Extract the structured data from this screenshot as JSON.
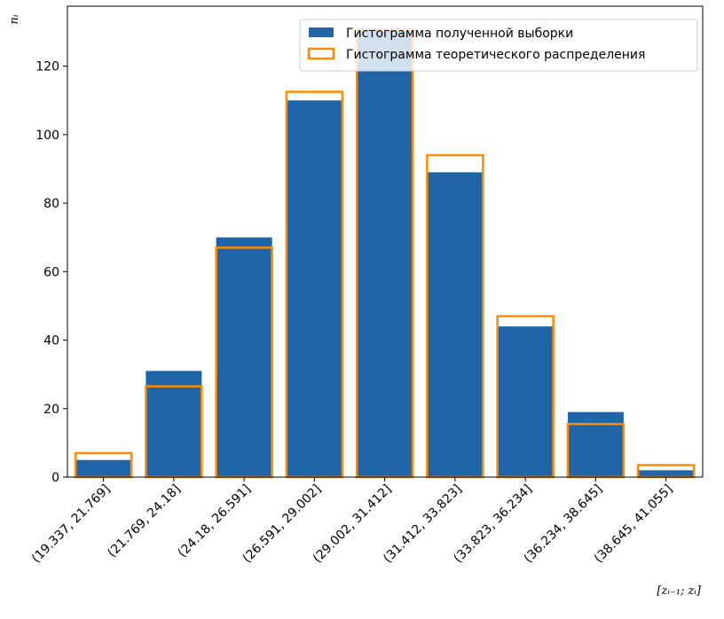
{
  "chart_data": {
    "type": "bar",
    "title": "",
    "xlabel": "[zᵢ₋₁; zᵢ]",
    "ylabel": "nᵢ",
    "categories": [
      "(19.337, 21.769]",
      "(21.769, 24.18]",
      "(24.18, 26.591]",
      "(26.591, 29.002]",
      "(29.002, 31.412]",
      "(31.412, 33.823]",
      "(33.823, 36.234]",
      "(36.234, 38.645]",
      "(38.645, 41.055]"
    ],
    "series": [
      {
        "name": "Гистограмма полученной выборки",
        "style": "filled",
        "color": "#1f65a8",
        "values": [
          5,
          31,
          70,
          110,
          131,
          89,
          44,
          19,
          2
        ]
      },
      {
        "name": "Гистограмма теоретического распределения",
        "style": "outline",
        "color": "#ff8c00",
        "values": [
          7,
          26.5,
          67,
          112.5,
          130.5,
          94,
          47,
          15.5,
          3.5
        ]
      }
    ],
    "yticks": [
      0,
      20,
      40,
      60,
      80,
      100,
      120
    ],
    "ylim": [
      0,
      137.5
    ],
    "grid": false,
    "legend_position": "top-right"
  }
}
